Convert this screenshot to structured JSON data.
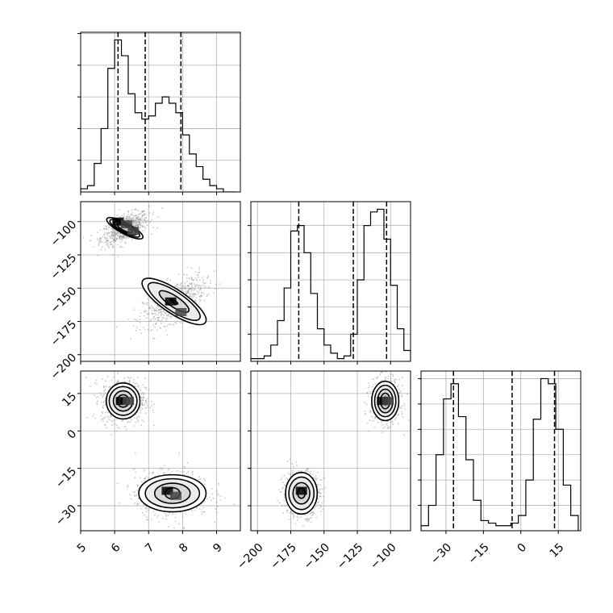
{
  "chart_data": {
    "type": "corner",
    "parameters": [
      {
        "axis_range": [
          5,
          9.7
        ],
        "ticks": [
          5,
          6,
          7,
          8,
          9
        ],
        "tick_labels": [
          "5",
          "6",
          "7",
          "8",
          "9"
        ],
        "quantile_lines": [
          6.1,
          6.9,
          7.95
        ]
      },
      {
        "axis_range": [
          -205,
          -85
        ],
        "ticks": [
          -200,
          -175,
          -150,
          -125,
          -100
        ],
        "tick_labels": [
          "−200",
          "−175",
          "−150",
          "−125",
          "−100"
        ],
        "quantile_lines": [
          -169,
          -128,
          -103
        ]
      },
      {
        "axis_range": [
          -40,
          24
        ],
        "ticks": [
          -30,
          -15,
          0,
          15
        ],
        "tick_labels": [
          "−30",
          "−15",
          "0",
          "15"
        ],
        "quantile_lines": [
          -27,
          -3.5,
          13.5
        ]
      }
    ],
    "histograms": [
      {
        "param": 0,
        "bin_edges": [
          5.0,
          5.2,
          5.4,
          5.6,
          5.8,
          6.0,
          6.2,
          6.4,
          6.6,
          6.8,
          7.0,
          7.2,
          7.4,
          7.6,
          7.8,
          8.0,
          8.2,
          8.4,
          8.6,
          8.8,
          9.0,
          9.2,
          9.4,
          9.6
        ],
        "counts": [
          1,
          2,
          9,
          20,
          39,
          48,
          43,
          31,
          25,
          23,
          24,
          28,
          30,
          28,
          25,
          18,
          12,
          8,
          4,
          2,
          1,
          0,
          0
        ]
      },
      {
        "param": 1,
        "bin_edges": [
          -205,
          -200,
          -195,
          -190,
          -185,
          -180,
          -175,
          -170,
          -165,
          -160,
          -155,
          -150,
          -145,
          -140,
          -135,
          -130,
          -125,
          -120,
          -115,
          -110,
          -105,
          -100,
          -95,
          -90,
          -85
        ],
        "counts": [
          1,
          1,
          2,
          6,
          15,
          27,
          48,
          50,
          40,
          25,
          12,
          6,
          3,
          1,
          2,
          10,
          30,
          50,
          55,
          56,
          45,
          28,
          12,
          4
        ]
      },
      {
        "param": 2,
        "bin_edges": [
          -40,
          -37,
          -34,
          -31,
          -28,
          -25,
          -22,
          -19,
          -16,
          -13,
          -10,
          -7,
          -4,
          -1,
          2,
          5,
          8,
          11,
          14,
          17,
          20,
          23
        ],
        "counts": [
          2,
          10,
          30,
          52,
          58,
          45,
          28,
          12,
          4,
          3,
          2,
          2,
          3,
          6,
          20,
          44,
          60,
          58,
          40,
          18,
          6
        ]
      }
    ],
    "contour_panels": [
      {
        "x_param": 0,
        "y_param": 1,
        "modes": [
          {
            "cx": 6.3,
            "cy": -105,
            "sx": 0.35,
            "sy": 6,
            "rho": 0.6,
            "contours": [
              {
                "a": 0.65,
                "b": 0.42
              },
              {
                "a": 0.98,
                "b": 0.62
              },
              {
                "a": 1.28,
                "b": 0.8
              },
              {
                "a": 1.55,
                "b": 0.95
              }
            ],
            "peak": [
              {
                "x": 6.1,
                "y": -100
              },
              {
                "x": 6.35,
                "y": -102
              },
              {
                "x": 6.55,
                "y": -107
              }
            ]
          },
          {
            "cx": 7.75,
            "cy": -160,
            "sx": 0.45,
            "sy": 9,
            "rho": 0.6,
            "contours": [
              {
                "a": 0.25,
                "b": 0.14
              },
              {
                "a": 1.0,
                "b": 0.65
              },
              {
                "a": 1.75,
                "b": 1.15
              },
              {
                "a": 2.15,
                "b": 1.42
              }
            ],
            "peak": [
              {
                "x": 7.65,
                "y": -160
              },
              {
                "x": 7.95,
                "y": -168
              }
            ]
          }
        ]
      },
      {
        "x_param": 0,
        "y_param": 2,
        "modes": [
          {
            "cx": 6.25,
            "cy": 12,
            "sx": 0.32,
            "sy": 4.5,
            "rho": 0.0,
            "contours": [
              {
                "a": 0.2,
                "b": 0.2
              },
              {
                "a": 0.55,
                "b": 0.55
              },
              {
                "a": 0.9,
                "b": 0.9
              },
              {
                "a": 1.28,
                "b": 1.28
              },
              {
                "a": 1.6,
                "b": 1.55
              }
            ],
            "peak": [
              {
                "x": 6.2,
                "y": 12
              },
              {
                "x": 6.4,
                "y": 12
              }
            ]
          },
          {
            "cx": 7.7,
            "cy": -25,
            "sx": 0.55,
            "sy": 4.5,
            "rho": 0.0,
            "contours": [
              {
                "a": 0.4,
                "b": 0.5
              },
              {
                "a": 0.95,
                "b": 0.9
              },
              {
                "a": 1.45,
                "b": 1.3
              },
              {
                "a": 1.8,
                "b": 1.65
              }
            ],
            "peak": [
              {
                "x": 7.55,
                "y": -24
              },
              {
                "x": 7.8,
                "y": -26
              }
            ]
          }
        ]
      },
      {
        "x_param": 1,
        "y_param": 2,
        "modes": [
          {
            "cx": -104,
            "cy": 12,
            "sx": 5.5,
            "sy": 4.5,
            "rho": 0.0,
            "contours": [
              {
                "a": 0.35,
                "b": 0.25
              },
              {
                "a": 0.7,
                "b": 0.65
              },
              {
                "a": 1.05,
                "b": 1.05
              },
              {
                "a": 1.4,
                "b": 1.45
              },
              {
                "a": 1.75,
                "b": 1.85
              }
            ],
            "peak": [
              {
                "x": -106,
                "y": 12
              },
              {
                "x": -102,
                "y": 12
              }
            ]
          },
          {
            "cx": -167,
            "cy": -25,
            "sx": 7,
            "sy": 4.5,
            "rho": 0.0,
            "contours": [
              {
                "a": 0.45,
                "b": 0.4
              },
              {
                "a": 0.95,
                "b": 0.9
              },
              {
                "a": 1.45,
                "b": 1.35
              },
              {
                "a": 1.85,
                "b": 1.7
              }
            ],
            "peak": [
              {
                "x": -167,
                "y": -24
              }
            ]
          }
        ]
      }
    ],
    "grid": true
  }
}
